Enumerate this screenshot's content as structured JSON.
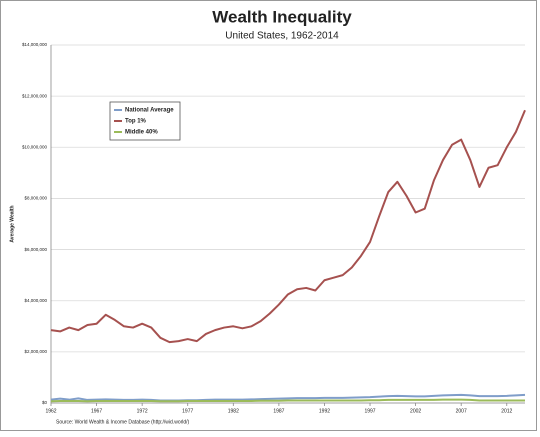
{
  "chart_data": {
    "type": "line",
    "title": "Wealth Inequality",
    "subtitle": "United States, 1962-2014",
    "y_label": "Average Wealth",
    "source": "Source: World Wealth & Income Database (http://wid.world/)",
    "x": [
      1962,
      1963,
      1964,
      1965,
      1966,
      1967,
      1968,
      1969,
      1970,
      1971,
      1972,
      1973,
      1974,
      1975,
      1976,
      1977,
      1978,
      1979,
      1980,
      1981,
      1982,
      1983,
      1984,
      1985,
      1986,
      1987,
      1988,
      1989,
      1990,
      1991,
      1992,
      1993,
      1994,
      1995,
      1996,
      1997,
      1998,
      1999,
      2000,
      2001,
      2002,
      2003,
      2004,
      2005,
      2006,
      2007,
      2008,
      2009,
      2010,
      2011,
      2012,
      2013,
      2014
    ],
    "xlim": [
      1962,
      2014
    ],
    "xticks": [
      1962,
      1967,
      1972,
      1977,
      1982,
      1987,
      1992,
      1997,
      2002,
      2007,
      2012
    ],
    "ylim": [
      0,
      14000000
    ],
    "yticks": [
      {
        "value": 0,
        "label": "$0"
      },
      {
        "value": 2000000,
        "label": "$2,000,000"
      },
      {
        "value": 4000000,
        "label": "$4,000,000"
      },
      {
        "value": 6000000,
        "label": "$6,000,000"
      },
      {
        "value": 8000000,
        "label": "$8,000,000"
      },
      {
        "value": 10000000,
        "label": "$10,000,000"
      },
      {
        "value": 12000000,
        "label": "$12,000,000"
      },
      {
        "value": 14000000,
        "label": "$14,000,000"
      }
    ],
    "grid": true,
    "legend": "upper left",
    "series": [
      {
        "name": "National Average",
        "color": "#7f9dc9",
        "values": [
          130000,
          170000,
          130000,
          180000,
          120000,
          130000,
          140000,
          130000,
          120000,
          120000,
          130000,
          120000,
          100000,
          100000,
          100000,
          110000,
          110000,
          120000,
          130000,
          130000,
          130000,
          130000,
          140000,
          150000,
          160000,
          170000,
          180000,
          190000,
          190000,
          190000,
          200000,
          200000,
          200000,
          210000,
          220000,
          230000,
          250000,
          270000,
          280000,
          270000,
          260000,
          260000,
          280000,
          300000,
          310000,
          320000,
          300000,
          270000,
          270000,
          270000,
          280000,
          300000,
          320000
        ]
      },
      {
        "name": "Top 1%",
        "color": "#a6514f",
        "values": [
          2850000,
          2800000,
          2950000,
          2850000,
          3050000,
          3100000,
          3450000,
          3250000,
          3000000,
          2950000,
          3100000,
          2950000,
          2550000,
          2380000,
          2420000,
          2500000,
          2420000,
          2700000,
          2850000,
          2950000,
          3000000,
          2920000,
          3000000,
          3200000,
          3500000,
          3850000,
          4250000,
          4450000,
          4500000,
          4400000,
          4800000,
          4900000,
          5000000,
          5300000,
          5750000,
          6300000,
          7300000,
          8250000,
          8650000,
          8100000,
          7450000,
          7600000,
          8700000,
          9500000,
          10100000,
          10300000,
          9500000,
          8450000,
          9200000,
          9300000,
          10000000,
          10600000,
          11450000
        ]
      },
      {
        "name": "Middle 40%",
        "color": "#9bbb59",
        "values": [
          70000,
          80000,
          80000,
          80000,
          70000,
          80000,
          80000,
          80000,
          80000,
          80000,
          80000,
          80000,
          70000,
          70000,
          70000,
          80000,
          80000,
          80000,
          80000,
          80000,
          80000,
          80000,
          80000,
          90000,
          90000,
          90000,
          100000,
          100000,
          100000,
          100000,
          100000,
          100000,
          100000,
          100000,
          100000,
          110000,
          110000,
          120000,
          120000,
          120000,
          120000,
          120000,
          120000,
          130000,
          130000,
          130000,
          120000,
          100000,
          100000,
          100000,
          100000,
          100000,
          100000
        ]
      }
    ]
  }
}
